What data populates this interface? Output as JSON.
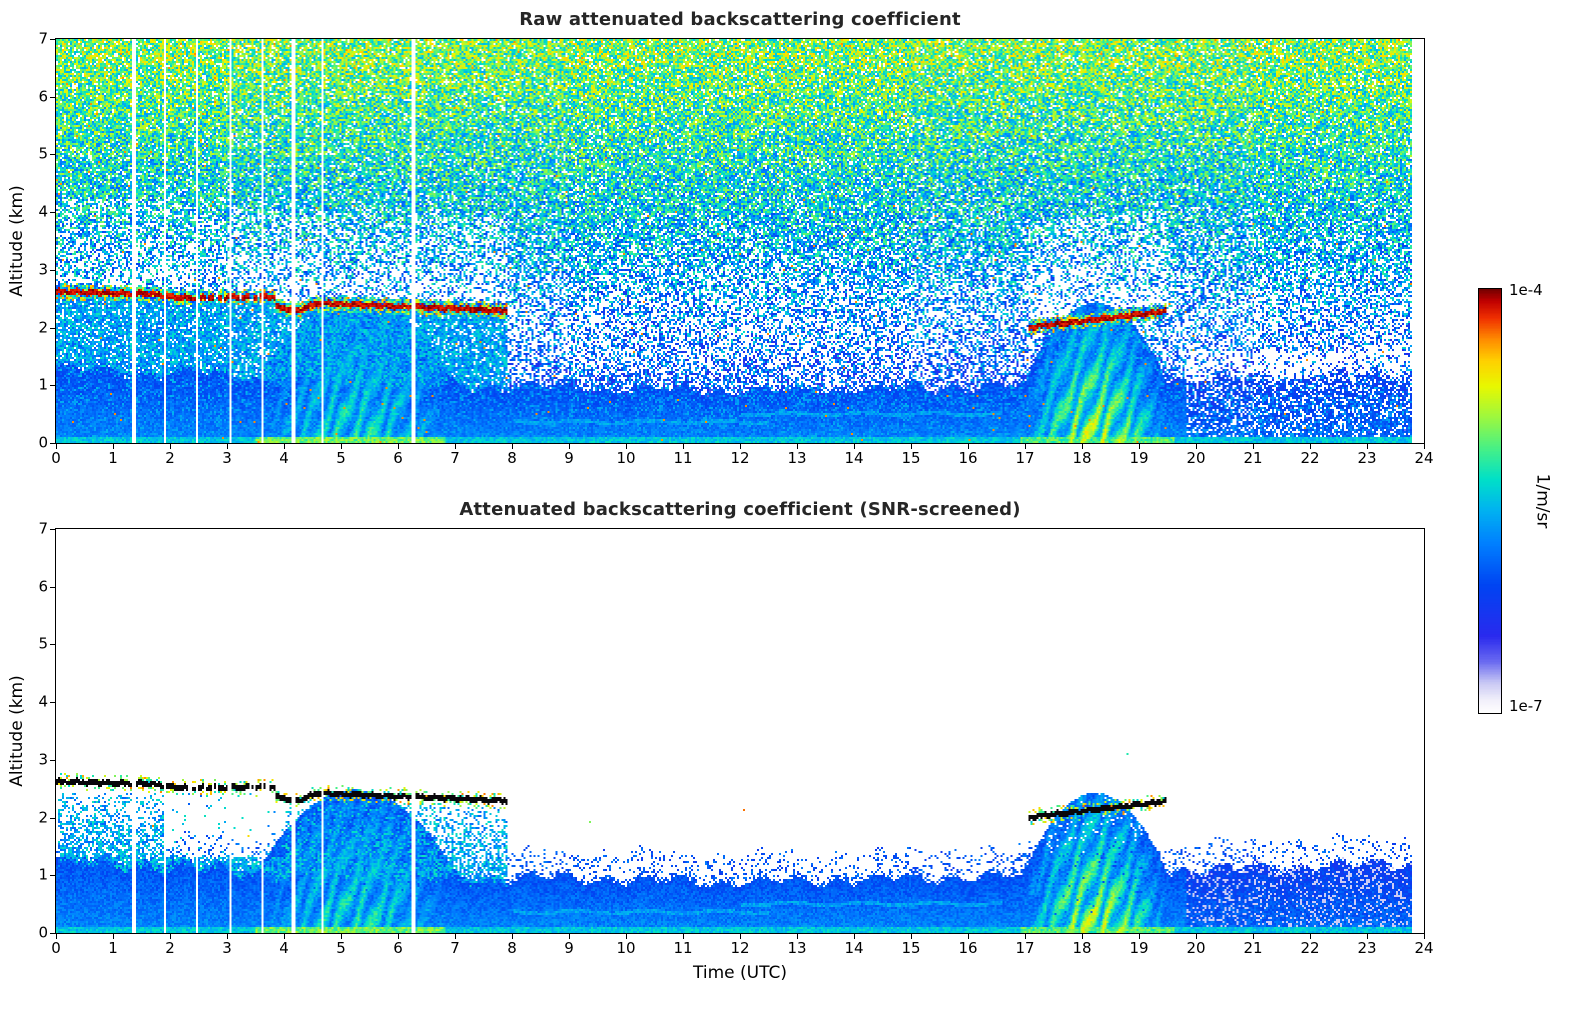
{
  "figure": {
    "xlabel": "Time (UTC)",
    "ylabel": "Altitude (km)",
    "background": "#ffffff",
    "colorbar": {
      "label": "1/m/sr",
      "top_tick": "1e-4",
      "bottom_tick": "1e-7",
      "scale": "log"
    }
  },
  "chart_data": [
    {
      "type": "heatmap",
      "title": "Raw attenuated backscattering coefficient",
      "xlabel": "",
      "ylabel": "Altitude (km)",
      "xlim": [
        0,
        24
      ],
      "ylim": [
        0,
        7
      ],
      "x_ticks": [
        0,
        1,
        2,
        3,
        4,
        5,
        6,
        7,
        8,
        9,
        10,
        11,
        12,
        13,
        14,
        15,
        16,
        17,
        18,
        19,
        20,
        21,
        22,
        23,
        24
      ],
      "y_ticks": [
        0,
        1,
        2,
        3,
        4,
        5,
        6,
        7
      ],
      "value_units": "1/m/sr",
      "value_range": [
        "1e-7",
        "1e-4"
      ],
      "screened": false,
      "features": {
        "description": "24 h lidar/ceilometer time-height curtain. Saturated liquid cloud base (~1e-4 1/m/sr, dark red) at 2.3-2.65 km from 0.0-7.9 UTC and at 2.0-2.3 km from 17.05-19.45 UTC. Boundary-layer aerosol (blue) below ~1-1.3 km all day; convective plumes 3.2-7.3 UTC and 16.75-19.7 UTC reach ~2.5 km (cyan-green-yellow). Raw panel dominated by range-increasing background noise (blue low, green-yellow aloft); white vertical lines are data gaps; record ends at 23.78 UTC.",
        "colormap_stops": [
          [
            0.0,
            "#ffffff"
          ],
          [
            0.03,
            "#f2f0fb"
          ],
          [
            0.07,
            "#c8c8f4"
          ],
          [
            0.12,
            "#6a6af0"
          ],
          [
            0.18,
            "#2a2aee"
          ],
          [
            0.3,
            "#0044f2"
          ],
          [
            0.4,
            "#0080ff"
          ],
          [
            0.48,
            "#00b4f0"
          ],
          [
            0.55,
            "#00e0c8"
          ],
          [
            0.62,
            "#44f088"
          ],
          [
            0.7,
            "#a0f83c"
          ],
          [
            0.77,
            "#e8f800"
          ],
          [
            0.83,
            "#ffd000"
          ],
          [
            0.88,
            "#ff8c00"
          ],
          [
            0.93,
            "#f03000"
          ],
          [
            0.97,
            "#c00000"
          ],
          [
            1.0,
            "#700000"
          ]
        ],
        "cloud_layers": [
          {
            "label": "morning cloud base layer",
            "segments": [
              {
                "t0": 0.0,
                "a0": 2.64,
                "t1": 1.6,
                "a1": 2.6
              },
              {
                "t0": 1.6,
                "a0": 2.6,
                "t1": 2.3,
                "a1": 2.52
              },
              {
                "t0": 2.3,
                "a0": 2.53,
                "t1": 3.85,
                "a1": 2.55,
                "patchy": true
              },
              {
                "t0": 3.85,
                "a0": 2.38,
                "t1": 4.2,
                "a1": 2.3
              },
              {
                "t0": 4.2,
                "a0": 2.3,
                "t1": 4.55,
                "a1": 2.43
              },
              {
                "t0": 4.55,
                "a0": 2.44,
                "t1": 7.9,
                "a1": 2.31
              }
            ]
          },
          {
            "label": "evening cloud base layer",
            "segments": [
              {
                "t0": 17.05,
                "a0": 2.02,
                "t1": 19.45,
                "a1": 2.3
              }
            ]
          }
        ],
        "gap_times_utc": [
          1.35,
          1.9,
          2.45,
          3.05,
          3.6,
          4.15,
          4.65,
          6.25
        ],
        "data_end_utc": 23.78,
        "boundary_layer_top_km": [
          [
            0,
            1.3
          ],
          [
            2,
            1.25
          ],
          [
            4,
            1.1
          ],
          [
            8,
            1.0
          ],
          [
            12,
            0.92
          ],
          [
            16,
            1.0
          ],
          [
            20,
            1.12
          ],
          [
            23.78,
            1.22
          ]
        ],
        "plume_events": [
          {
            "t0": 3.2,
            "t1": 7.3,
            "top_km": 2.5,
            "peak": 0.62
          },
          {
            "t0": 16.75,
            "t1": 19.7,
            "top_km": 2.45,
            "peak": 0.8
          }
        ],
        "thin_aerosol_layers": [
          {
            "t0": 8.0,
            "t1": 12.5,
            "alt_km": 0.38
          },
          {
            "t0": 12.0,
            "t1": 16.6,
            "alt_km": 0.52
          }
        ],
        "subcloud_speckle": {
          "t0": 0,
          "t1": 7.9,
          "alt0": 1.0,
          "alt1": 2.45,
          "white_patch": [
            1.9,
            4.0,
            1.35,
            2.4
          ]
        }
      }
    },
    {
      "type": "heatmap",
      "title": "Attenuated backscattering coefficient (SNR-screened)",
      "xlabel": "Time (UTC)",
      "ylabel": "Altitude (km)",
      "xlim": [
        0,
        24
      ],
      "ylim": [
        0,
        7
      ],
      "x_ticks": [
        0,
        1,
        2,
        3,
        4,
        5,
        6,
        7,
        8,
        9,
        10,
        11,
        12,
        13,
        14,
        15,
        16,
        17,
        18,
        19,
        20,
        21,
        22,
        23,
        24
      ],
      "y_ticks": [
        0,
        1,
        2,
        3,
        4,
        5,
        6,
        7
      ],
      "value_units": "1/m/sr",
      "value_range": [
        "1e-7",
        "1e-4"
      ],
      "screened": true,
      "features_ref": 0,
      "notes": "Same scene as raw panel with low-SNR pixels masked white; cloud base returns appear saturated black; only boundary-layer aerosol, plumes and sub-cloud signal remain."
    }
  ]
}
